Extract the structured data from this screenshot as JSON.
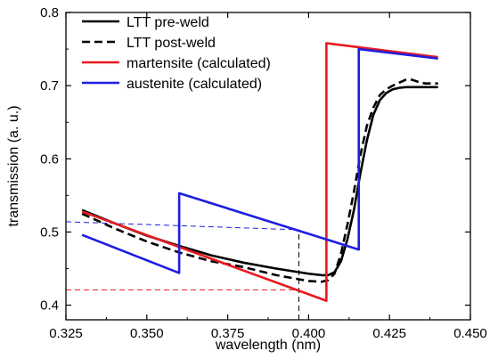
{
  "chart_data": {
    "type": "line",
    "xlabel": "wavelength (nm)",
    "ylabel": "transmission (a. u.)",
    "xlim": [
      0.325,
      0.45
    ],
    "ylim": [
      0.38,
      0.8
    ],
    "x_ticks": [
      0.325,
      0.35,
      0.375,
      0.4,
      0.425,
      0.45
    ],
    "x_tick_labels": [
      "0.325",
      "0.350",
      "0.375",
      "0.400",
      "0.425",
      "0.450"
    ],
    "y_ticks": [
      0.4,
      0.5,
      0.6,
      0.7,
      0.8
    ],
    "y_tick_labels": [
      "0.4",
      "0.5",
      "0.6",
      "0.7",
      "0.8"
    ],
    "legend_position": "top-left",
    "series": [
      {
        "name": "LTT pre-weld",
        "color": "#000000",
        "style": "solid",
        "x": [
          0.33,
          0.34,
          0.35,
          0.36,
          0.37,
          0.38,
          0.39,
          0.4,
          0.404,
          0.406,
          0.408,
          0.41,
          0.412,
          0.414,
          0.416,
          0.418,
          0.42,
          0.422,
          0.424,
          0.426,
          0.428,
          0.43,
          0.432,
          0.435,
          0.44
        ],
        "y": [
          0.53,
          0.512,
          0.495,
          0.481,
          0.468,
          0.458,
          0.45,
          0.443,
          0.441,
          0.441,
          0.445,
          0.46,
          0.49,
          0.53,
          0.58,
          0.625,
          0.66,
          0.68,
          0.69,
          0.695,
          0.697,
          0.698,
          0.698,
          0.698,
          0.698
        ]
      },
      {
        "name": "LTT post-weld",
        "color": "#000000",
        "style": "dashed",
        "x": [
          0.33,
          0.34,
          0.35,
          0.36,
          0.37,
          0.38,
          0.39,
          0.4,
          0.404,
          0.406,
          0.408,
          0.41,
          0.412,
          0.414,
          0.416,
          0.418,
          0.42,
          0.422,
          0.424,
          0.426,
          0.428,
          0.43,
          0.432,
          0.434,
          0.436,
          0.438,
          0.44
        ],
        "y": [
          0.525,
          0.505,
          0.487,
          0.472,
          0.46,
          0.452,
          0.441,
          0.433,
          0.432,
          0.434,
          0.443,
          0.47,
          0.51,
          0.555,
          0.605,
          0.645,
          0.67,
          0.687,
          0.695,
          0.7,
          0.704,
          0.708,
          0.708,
          0.705,
          0.703,
          0.703,
          0.703
        ]
      },
      {
        "name": "martensite (calculated)",
        "color": "#e8191e",
        "style": "solid",
        "x": [
          0.33,
          0.4055,
          0.4055,
          0.44
        ],
        "y": [
          0.528,
          0.406,
          0.758,
          0.739
        ]
      },
      {
        "name": "austenite (calculated)",
        "color": "#1d1ee0",
        "style": "solid",
        "x": [
          0.33,
          0.36,
          0.36,
          0.4155,
          0.4155,
          0.44
        ],
        "y": [
          0.496,
          0.444,
          0.553,
          0.476,
          0.75,
          0.737
        ]
      }
    ],
    "reference_lines": [
      {
        "color": "#1d1ee0",
        "style": "dashed",
        "x": [
          0.325,
          0.397
        ],
        "y": [
          0.514,
          0.503
        ]
      },
      {
        "color": "#e8191e",
        "style": "dashed",
        "x": [
          0.325,
          0.397
        ],
        "y": [
          0.421,
          0.421
        ]
      },
      {
        "color": "#000000",
        "style": "dashed",
        "x": [
          0.397,
          0.397
        ],
        "y": [
          0.38,
          0.503
        ]
      }
    ]
  }
}
